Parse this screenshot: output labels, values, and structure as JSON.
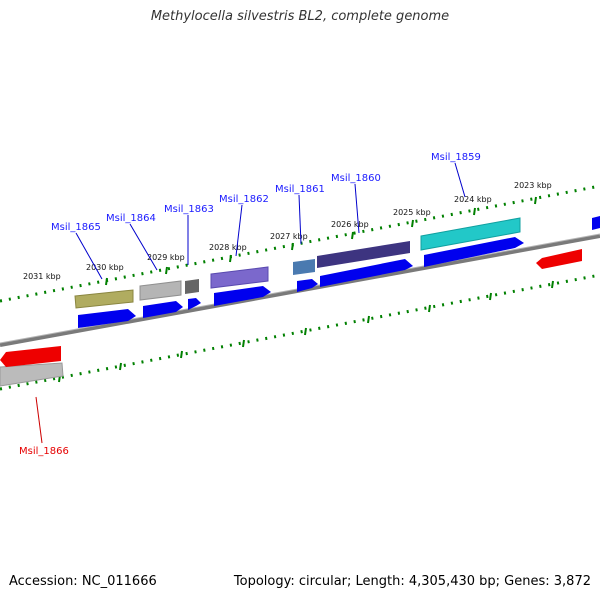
{
  "title": "Methylocella silvestris BL2, complete genome",
  "accession": "Accession: NC_011666",
  "stats": "Topology: circular; Length: 4,305,430 bp; Genes: 3,872",
  "kbp_labels": [
    "2031 kbp",
    "2030 kbp",
    "2029 kbp",
    "2028 kbp",
    "2027 kbp",
    "2026 kbp",
    "2025 kbp",
    "2024 kbp",
    "2023 kbp"
  ],
  "genes": [
    {
      "id": "Msil_1859",
      "color": "#1a1aff"
    },
    {
      "id": "Msil_1860",
      "color": "#1a1aff"
    },
    {
      "id": "Msil_1861",
      "color": "#1a1aff"
    },
    {
      "id": "Msil_1862",
      "color": "#1a1aff"
    },
    {
      "id": "Msil_1863",
      "color": "#1a1aff"
    },
    {
      "id": "Msil_1864",
      "color": "#1a1aff"
    },
    {
      "id": "Msil_1865",
      "color": "#1a1aff"
    },
    {
      "id": "Msil_1866",
      "color": "#e60000"
    }
  ],
  "colors": {
    "forward_strand": "#0000ee",
    "reverse_strand": "#ee0000",
    "tick": "#008000",
    "backbone": "#7a7a7a"
  }
}
